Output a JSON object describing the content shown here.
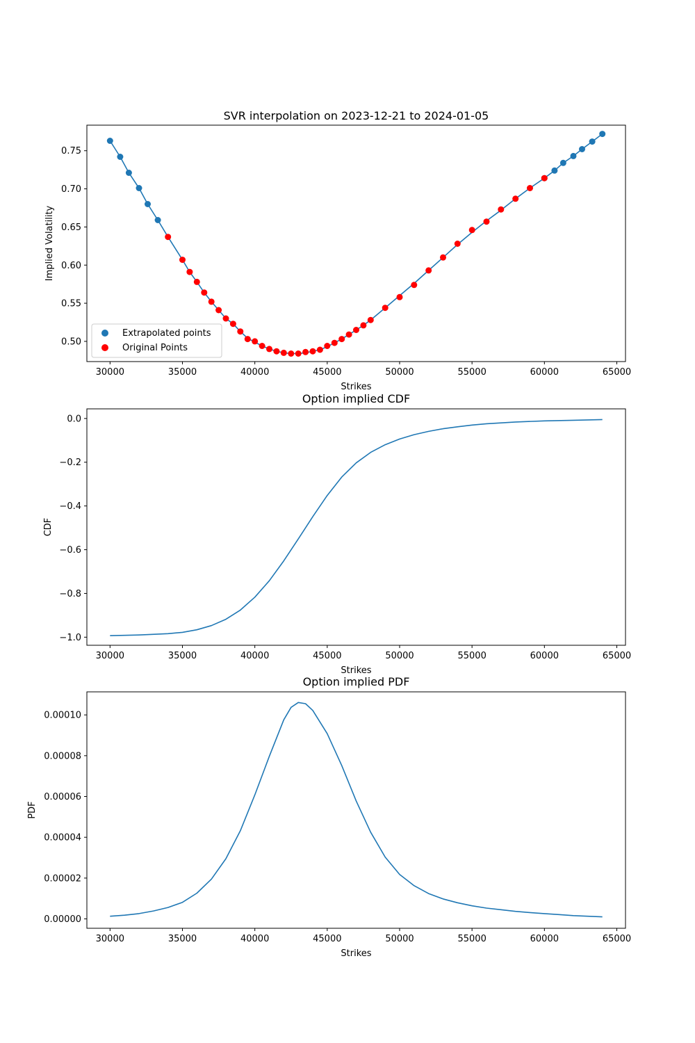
{
  "colors": {
    "line": "#1f77b4",
    "extrapolated": "#1f77b4",
    "original": "#ff0000",
    "axes": "#000000",
    "background": "#ffffff"
  },
  "chart_data": [
    {
      "type": "scatter",
      "title": "SVR interpolation on 2023-12-21 to 2024-01-05",
      "xlabel": "Strikes",
      "ylabel": "Implied Volatility",
      "xlim": [
        28400,
        65600
      ],
      "ylim": [
        0.4735,
        0.7835
      ],
      "xticks": [
        30000,
        35000,
        40000,
        45000,
        50000,
        55000,
        60000,
        65000
      ],
      "yticks": [
        0.5,
        0.55,
        0.6,
        0.65,
        0.7,
        0.75
      ],
      "ytick_labels": [
        "0.50",
        "0.55",
        "0.60",
        "0.65",
        "0.70",
        "0.75"
      ],
      "grid": false,
      "legend": {
        "position": "lower-left",
        "entries": [
          "Extrapolated points",
          "Original Points"
        ]
      },
      "line": {
        "x": [
          30000,
          30700,
          31300,
          32000,
          32600,
          33300,
          34000,
          35000,
          35500,
          36000,
          36500,
          37000,
          37500,
          38000,
          38500,
          39000,
          39500,
          40000,
          40500,
          41000,
          41500,
          42000,
          42500,
          43000,
          43500,
          44000,
          44500,
          45000,
          45500,
          46000,
          46500,
          47000,
          47500,
          48000,
          49000,
          50000,
          51000,
          52000,
          53000,
          54000,
          55000,
          56000,
          57000,
          58000,
          59000,
          60000,
          60700,
          61300,
          62000,
          62600,
          63300,
          64000
        ],
        "y": [
          0.763,
          0.742,
          0.721,
          0.701,
          0.68,
          0.659,
          0.637,
          0.607,
          0.591,
          0.578,
          0.564,
          0.552,
          0.541,
          0.53,
          0.523,
          0.513,
          0.504,
          0.499,
          0.494,
          0.49,
          0.487,
          0.485,
          0.484,
          0.484,
          0.485,
          0.487,
          0.489,
          0.493,
          0.498,
          0.503,
          0.509,
          0.515,
          0.521,
          0.528,
          0.544,
          0.56,
          0.576,
          0.593,
          0.61,
          0.627,
          0.643,
          0.658,
          0.672,
          0.687,
          0.701,
          0.714,
          0.724,
          0.734,
          0.743,
          0.752,
          0.762,
          0.772
        ]
      },
      "series": [
        {
          "name": "Extrapolated points",
          "color": "#1f77b4",
          "x": [
            30000,
            30700,
            31300,
            32000,
            32600,
            33300,
            60000,
            60700,
            61300,
            62000,
            62600,
            63300,
            64000
          ],
          "y": [
            0.763,
            0.742,
            0.721,
            0.701,
            0.68,
            0.659,
            0.714,
            0.724,
            0.734,
            0.743,
            0.752,
            0.762,
            0.772
          ]
        },
        {
          "name": "Original Points",
          "color": "#ff0000",
          "x": [
            34000,
            35000,
            35500,
            36000,
            36500,
            37000,
            37500,
            38000,
            38500,
            39000,
            39500,
            40000,
            40500,
            41000,
            41500,
            42000,
            42500,
            43000,
            43500,
            44000,
            44500,
            45000,
            45500,
            46000,
            46500,
            47000,
            47500,
            48000,
            49000,
            50000,
            51000,
            52000,
            53000,
            54000,
            55000,
            56000,
            57000,
            58000,
            59000,
            60000
          ],
          "y": [
            0.637,
            0.607,
            0.591,
            0.578,
            0.564,
            0.552,
            0.541,
            0.53,
            0.523,
            0.513,
            0.503,
            0.5,
            0.494,
            0.49,
            0.487,
            0.485,
            0.484,
            0.484,
            0.486,
            0.487,
            0.489,
            0.494,
            0.498,
            0.503,
            0.509,
            0.515,
            0.521,
            0.528,
            0.544,
            0.558,
            0.574,
            0.593,
            0.61,
            0.628,
            0.646,
            0.657,
            0.673,
            0.687,
            0.701,
            0.714
          ]
        }
      ]
    },
    {
      "type": "line",
      "title": "Option implied CDF",
      "xlabel": "Strikes",
      "ylabel": "CDF",
      "xlim": [
        28400,
        65600
      ],
      "ylim": [
        -1.037,
        0.044
      ],
      "xticks": [
        30000,
        35000,
        40000,
        45000,
        50000,
        55000,
        60000,
        65000
      ],
      "yticks": [
        -1.0,
        -0.8,
        -0.6,
        -0.4,
        -0.2,
        0.0
      ],
      "ytick_labels": [
        "−1.0",
        "−0.8",
        "−0.6",
        "−0.4",
        "−0.2",
        "0.0"
      ],
      "grid": false,
      "series": [
        {
          "x": [
            30000,
            32000,
            34000,
            35000,
            36000,
            37000,
            38000,
            39000,
            40000,
            41000,
            42000,
            43000,
            44000,
            45000,
            46000,
            47000,
            48000,
            49000,
            50000,
            51000,
            52000,
            53000,
            54000,
            55000,
            56000,
            58000,
            60000,
            62000,
            64000
          ],
          "y": [
            -0.993,
            -0.99,
            -0.984,
            -0.978,
            -0.966,
            -0.947,
            -0.918,
            -0.876,
            -0.817,
            -0.742,
            -0.651,
            -0.551,
            -0.449,
            -0.352,
            -0.268,
            -0.203,
            -0.155,
            -0.12,
            -0.094,
            -0.074,
            -0.059,
            -0.047,
            -0.038,
            -0.03,
            -0.024,
            -0.016,
            -0.011,
            -0.008,
            -0.005
          ]
        }
      ]
    },
    {
      "type": "line",
      "title": "Option implied PDF",
      "xlabel": "Strikes",
      "ylabel": "PDF",
      "xlim": [
        28400,
        65600
      ],
      "ylim": [
        -4.6e-06,
        0.0001113
      ],
      "xticks": [
        30000,
        35000,
        40000,
        45000,
        50000,
        55000,
        60000,
        65000
      ],
      "yticks": [
        0.0,
        2e-05,
        4e-05,
        6e-05,
        8e-05,
        0.0001
      ],
      "ytick_labels": [
        "0.00000",
        "0.00002",
        "0.00004",
        "0.00006",
        "0.00008",
        "0.00010"
      ],
      "grid": false,
      "series": [
        {
          "x": [
            30000,
            31000,
            32000,
            33000,
            34000,
            35000,
            36000,
            37000,
            38000,
            39000,
            40000,
            41000,
            42000,
            42500,
            43000,
            43500,
            44000,
            45000,
            46000,
            47000,
            48000,
            49000,
            50000,
            51000,
            52000,
            53000,
            54000,
            55000,
            56000,
            57000,
            58000,
            59000,
            60000,
            61000,
            62000,
            63000,
            64000
          ],
          "y": [
            1.3e-06,
            1.8e-06,
            2.6e-06,
            3.9e-06,
            5.6e-06,
            8.1e-06,
            1.26e-05,
            1.95e-05,
            2.95e-05,
            4.32e-05,
            6.08e-05,
            7.97e-05,
            9.76e-05,
            0.0001037,
            0.0001061,
            0.0001055,
            0.0001022,
            9.08e-05,
            7.52e-05,
            5.78e-05,
            4.25e-05,
            3.03e-05,
            2.18e-05,
            1.63e-05,
            1.24e-05,
            9.8e-06,
            7.9e-06,
            6.4e-06,
            5.3e-06,
            4.5e-06,
            3.7e-06,
            3.1e-06,
            2.6e-06,
            2.1e-06,
            1.6e-06,
            1.3e-06,
            1e-06
          ]
        }
      ]
    }
  ]
}
